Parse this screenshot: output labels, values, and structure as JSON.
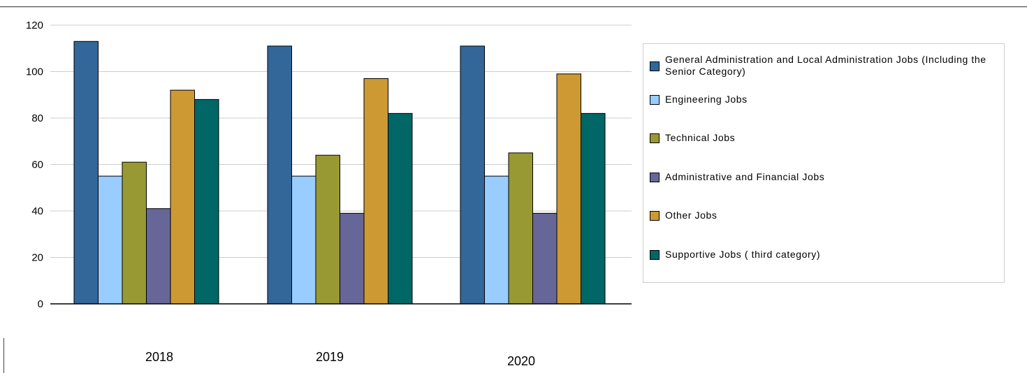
{
  "chart_data": {
    "type": "bar",
    "categories": [
      "2018",
      "2019",
      "2020"
    ],
    "series": [
      {
        "name": "General Administration and Local Administration Jobs (Including the Senior Category)",
        "color": "#336699",
        "values": [
          113,
          111,
          111
        ]
      },
      {
        "name": "Engineering Jobs",
        "color": "#99ccff",
        "values": [
          55,
          55,
          55
        ]
      },
      {
        "name": "Technical Jobs",
        "color": "#999933",
        "values": [
          61,
          64,
          65
        ]
      },
      {
        "name": "Administrative and Financial Jobs",
        "color": "#666699",
        "values": [
          41,
          39,
          39
        ]
      },
      {
        "name": "Other Jobs",
        "color": "#cc9933",
        "values": [
          92,
          97,
          99
        ]
      },
      {
        "name": "Supportive Jobs ( third category)",
        "color": "#006666",
        "values": [
          88,
          82,
          82
        ]
      }
    ],
    "ylim": [
      0,
      120
    ],
    "yticks": [
      "0",
      "20",
      "40",
      "60",
      "80",
      "100",
      "120"
    ],
    "grid": true,
    "legend_position": "right"
  }
}
